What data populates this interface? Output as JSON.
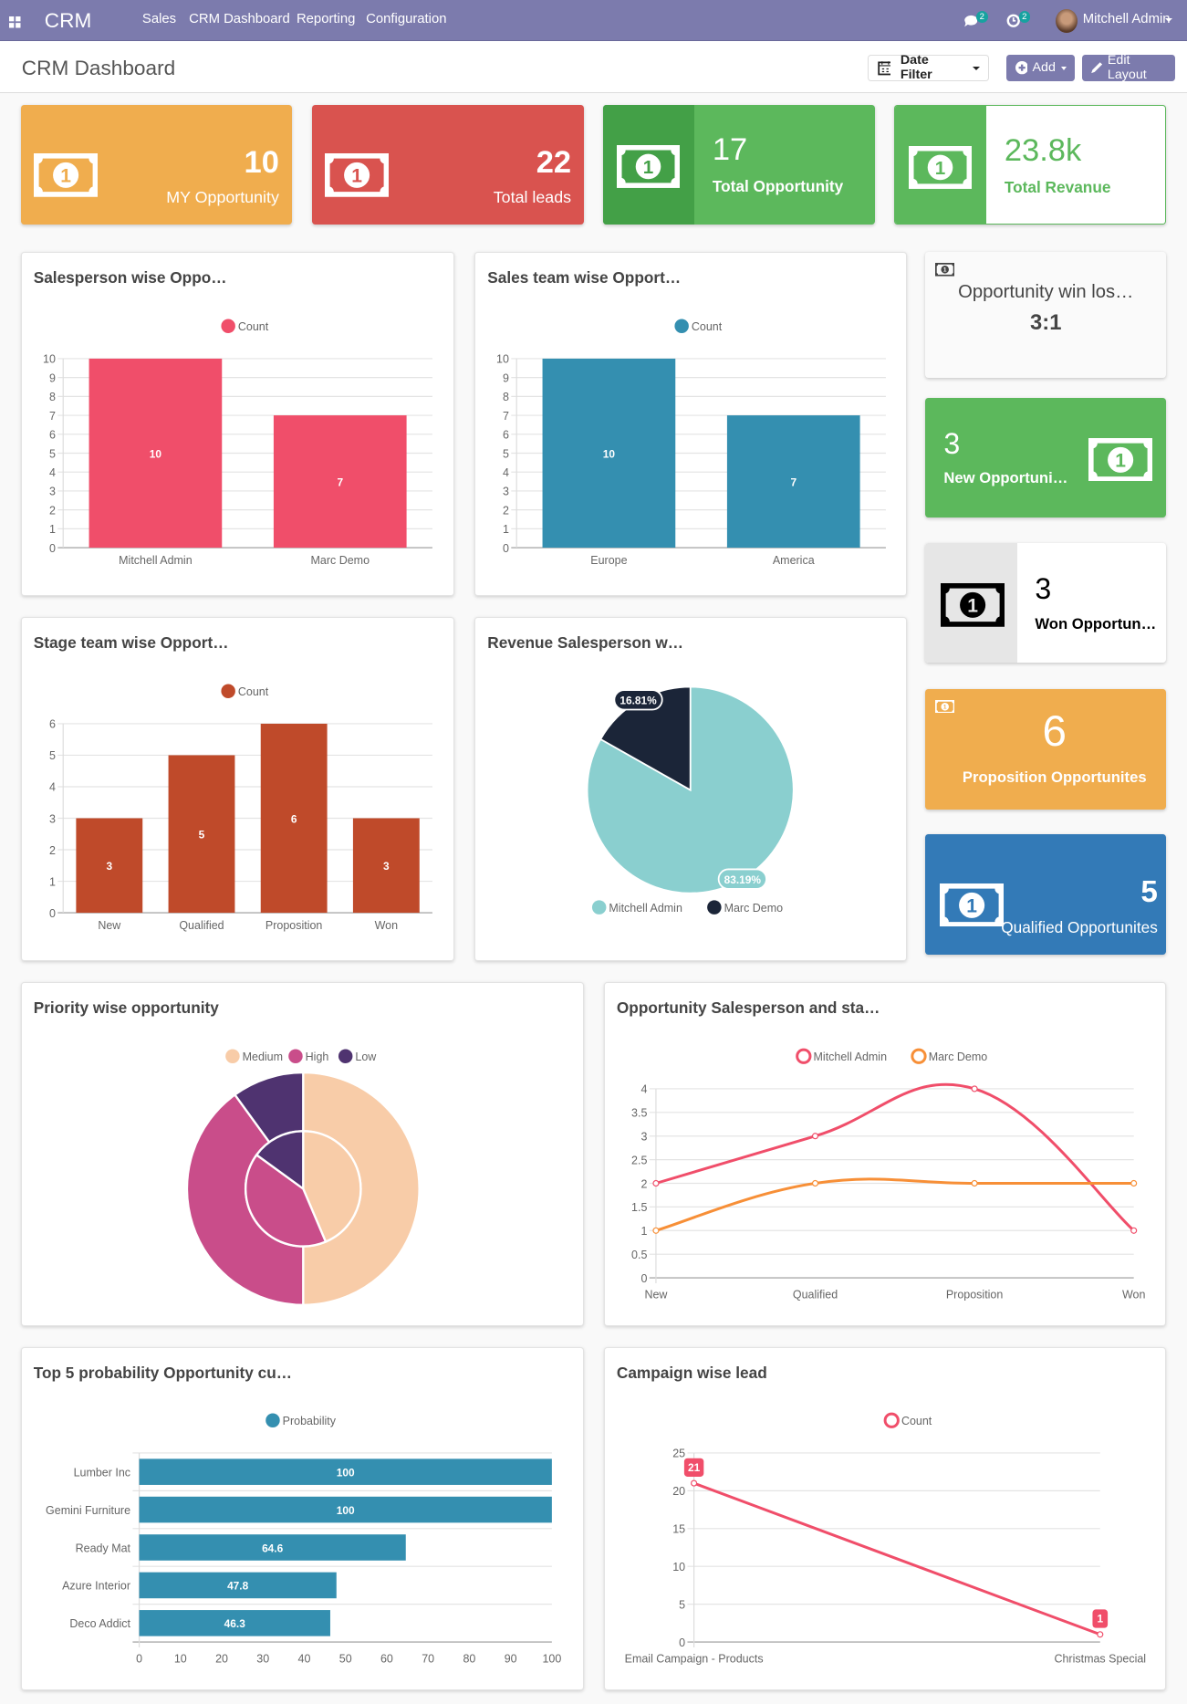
{
  "navbar": {
    "app": "CRM",
    "menu": [
      "Sales",
      "CRM Dashboard",
      "Reporting",
      "Configuration"
    ],
    "messages_count": "2",
    "activities_count": "2",
    "user": "Mitchell Admin",
    "color": "#7c7bad"
  },
  "control": {
    "title": "CRM Dashboard",
    "date_filter": "Date Filter",
    "add": "Add",
    "edit_layout": "Edit Layout"
  },
  "kpis": [
    {
      "value": "10",
      "label": "MY Opportunity",
      "color": "#f0ad4e"
    },
    {
      "value": "22",
      "label": "Total leads",
      "color": "#d9534f"
    },
    {
      "value": "17",
      "label": "Total Opportunity",
      "color": "#5cb85c"
    },
    {
      "value": "23.8k",
      "label": "Total Revanue",
      "color": "#5cb85c"
    }
  ],
  "side_kpis": [
    {
      "label": "Opportunity win los…",
      "value": "3:1"
    },
    {
      "value": "3",
      "label": "New Opportuni…",
      "color": "#5cb85c"
    },
    {
      "value": "3",
      "label": "Won Opportun…"
    },
    {
      "value": "6",
      "label": "Proposition Opportunites",
      "color": "#f0ad4e"
    },
    {
      "value": "5",
      "label": "Qualified Opportunites",
      "color": "#337ab7"
    }
  ],
  "chart_data": [
    {
      "type": "bar",
      "title": "Salesperson wise Oppo…",
      "categories": [
        "Mitchell Admin",
        "Marc Demo"
      ],
      "series": [
        {
          "name": "Count",
          "values": [
            10,
            7
          ],
          "color": "#f04e6a"
        }
      ],
      "ylim": [
        0,
        10
      ],
      "yticks": [
        0,
        1,
        2,
        3,
        4,
        5,
        6,
        7,
        8,
        9,
        10
      ],
      "legend": "top",
      "grid": true
    },
    {
      "type": "bar",
      "title": "Sales team wise Opport…",
      "categories": [
        "Europe",
        "America"
      ],
      "series": [
        {
          "name": "Count",
          "values": [
            10,
            7
          ],
          "color": "#348fb0"
        }
      ],
      "ylim": [
        0,
        10
      ],
      "yticks": [
        0,
        1,
        2,
        3,
        4,
        5,
        6,
        7,
        8,
        9,
        10
      ],
      "legend": "top",
      "grid": true
    },
    {
      "type": "bar",
      "title": "Stage team wise Opport…",
      "categories": [
        "New",
        "Qualified",
        "Proposition",
        "Won"
      ],
      "series": [
        {
          "name": "Count",
          "values": [
            3,
            5,
            6,
            3
          ],
          "color": "#bf4a2a"
        }
      ],
      "ylim": [
        0,
        6
      ],
      "yticks": [
        0,
        1,
        2,
        3,
        4,
        5,
        6
      ],
      "legend": "top",
      "grid": true
    },
    {
      "type": "pie",
      "title": "Revenue Salesperson w…",
      "categories": [
        "Mitchell Admin",
        "Marc Demo"
      ],
      "values": [
        83.19,
        16.81
      ],
      "labels": [
        "83.19%",
        "16.81%"
      ],
      "colors": [
        "#8acfcf",
        "#1b2538"
      ],
      "legend": "bottom"
    },
    {
      "type": "donut",
      "title": "Priority wise opportunity",
      "categories": [
        "Medium",
        "High",
        "Low"
      ],
      "series": [
        {
          "values": [
            5,
            4,
            1
          ]
        },
        {
          "values": [
            43.6,
            41.4,
            15
          ]
        }
      ],
      "colors": [
        "#f8cca8",
        "#c94d8a",
        "#4f3370"
      ],
      "legend": "top"
    },
    {
      "type": "line",
      "title": "Opportunity Salesperson and sta…",
      "categories": [
        "New",
        "Qualified",
        "Proposition",
        "Won"
      ],
      "series": [
        {
          "name": "Mitchell Admin",
          "values": [
            2,
            3,
            4,
            1
          ],
          "color": "#f04e6a"
        },
        {
          "name": "Marc Demo",
          "values": [
            1,
            2,
            2,
            2
          ],
          "color": "#f78f37"
        }
      ],
      "ylim": [
        0,
        4
      ],
      "yticks": [
        "0",
        "0.5",
        "1",
        "1.5",
        "2",
        "2.5",
        "3",
        "3.5",
        "4"
      ],
      "legend": "top",
      "grid": true
    },
    {
      "type": "hbar",
      "title": "Top 5 probability Opportunity cu…",
      "categories": [
        "Lumber Inc",
        "Gemini Furniture",
        "Ready Mat",
        "Azure Interior",
        "Deco Addict"
      ],
      "series": [
        {
          "name": "Probability",
          "values": [
            100,
            100,
            64.6,
            47.8,
            46.3
          ],
          "color": "#348fb0"
        }
      ],
      "xlim": [
        0,
        100
      ],
      "xticks": [
        0,
        10,
        20,
        30,
        40,
        50,
        60,
        70,
        80,
        90,
        100
      ],
      "legend": "top",
      "grid": true
    },
    {
      "type": "line",
      "title": "Campaign wise lead",
      "categories": [
        "Email Campaign - Products",
        "Christmas Special"
      ],
      "series": [
        {
          "name": "Count",
          "values": [
            21,
            1
          ],
          "color": "#f04e6a"
        }
      ],
      "ylim": [
        0,
        25
      ],
      "yticks": [
        "0",
        "5",
        "10",
        "15",
        "20",
        "25"
      ],
      "legend": "top",
      "grid": true,
      "data_labels": true
    }
  ]
}
